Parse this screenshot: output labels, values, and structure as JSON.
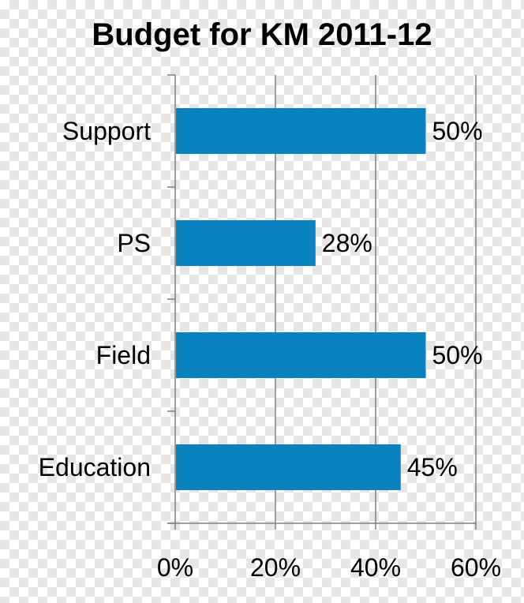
{
  "chart_data": {
    "type": "bar",
    "orientation": "horizontal",
    "title": "Budget for KM 2011-12",
    "categories": [
      "Support",
      "PS",
      "Field",
      "Education"
    ],
    "values": [
      50,
      28,
      50,
      45
    ],
    "value_labels": [
      "50%",
      "28%",
      "50%",
      "45%"
    ],
    "xlim": [
      0,
      60
    ],
    "x_ticks": [
      0,
      20,
      40,
      60
    ],
    "x_tick_labels": [
      "0%",
      "20%",
      "40%",
      "60%"
    ],
    "xlabel": "",
    "ylabel": "",
    "grid": "vertical",
    "legend": "none",
    "bar_color": "#0a82c0",
    "grid_color": "#808080"
  }
}
